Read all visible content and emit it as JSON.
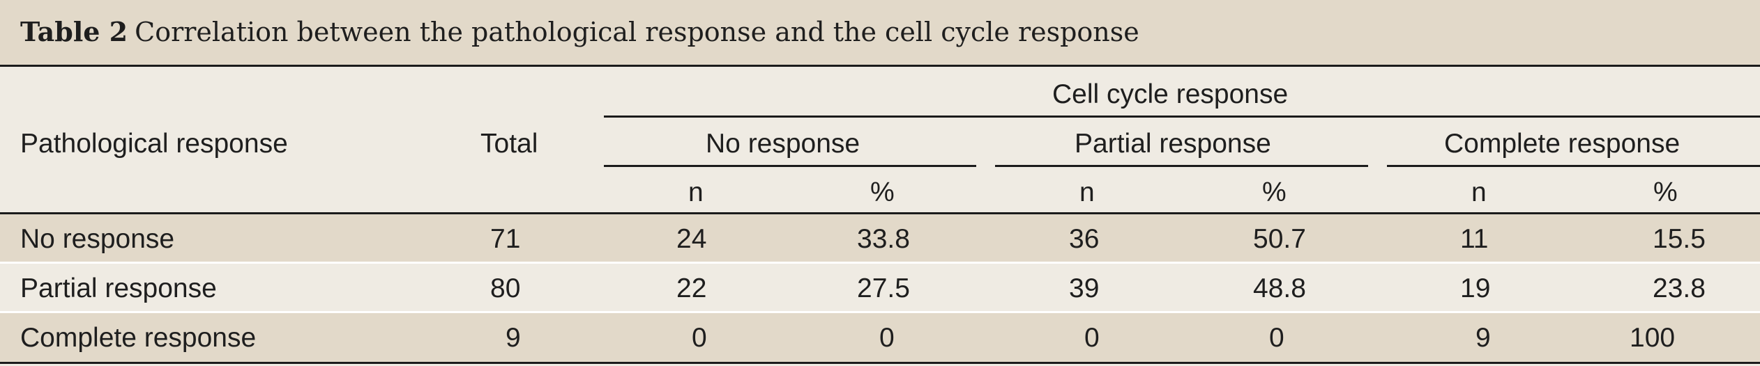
{
  "table": {
    "label": "Table 2",
    "caption": "Correlation between the pathological response and the cell cycle response",
    "header": {
      "row_header": "Pathological response",
      "total": "Total",
      "group_title": "Cell cycle response",
      "groups": [
        "No response",
        "Partial response",
        "Complete response"
      ],
      "sub": [
        "n",
        "%",
        "n",
        "%",
        "n",
        "%"
      ]
    },
    "rows": [
      {
        "label": "No response",
        "total": "71",
        "values": [
          "24",
          "33.8",
          "36",
          "50.7",
          "11",
          "15.5"
        ]
      },
      {
        "label": "Partial response",
        "total": "80",
        "values": [
          "22",
          "27.5",
          "39",
          "48.8",
          "19",
          "23.8"
        ]
      },
      {
        "label": "Complete response",
        "total": "9",
        "values": [
          "0",
          "0",
          "0",
          "0",
          "9",
          "100"
        ]
      }
    ]
  }
}
